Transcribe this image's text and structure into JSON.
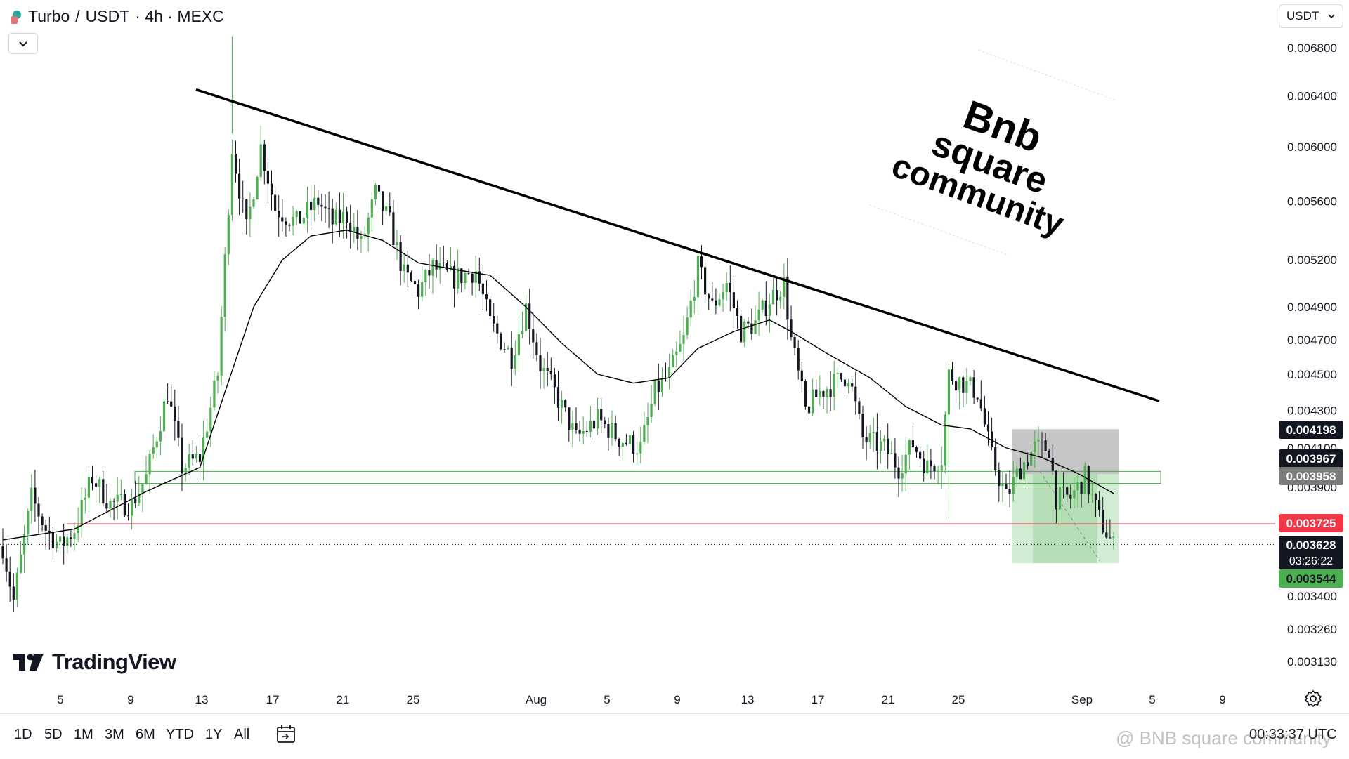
{
  "header": {
    "symbol": "Turbo",
    "separator1": "/",
    "quote": "USDT",
    "details": "· 4h · MEXC"
  },
  "currency_selector": {
    "label": "USDT"
  },
  "brand": {
    "name": "TradingView"
  },
  "watermark_text": "@ BNB square community",
  "overlay_text": [
    "Bnb",
    "square",
    "community"
  ],
  "time_ranges": [
    "1D",
    "5D",
    "1M",
    "3M",
    "6M",
    "YTD",
    "1Y",
    "All"
  ],
  "clock": "00:33:37 UTC",
  "colors": {
    "up": "#4caf50",
    "down": "#131722",
    "ma": "#000000",
    "support_zone": "#4caf50",
    "red_line": "#f23645",
    "stop_zone": "#9e9e9e",
    "target_zone": "#4caf50"
  },
  "chart_data": {
    "type": "candlestick",
    "x_ticks": [
      "5",
      "9",
      "13",
      "17",
      "21",
      "25",
      "Aug",
      "5",
      "9",
      "13",
      "17",
      "21",
      "25",
      "Sep",
      "5",
      "9"
    ],
    "y_ticks": [
      "0.006800",
      "0.006400",
      "0.006000",
      "0.005600",
      "0.005200",
      "0.004900",
      "0.004700",
      "0.004500",
      "0.004300",
      "0.004100",
      "0.003900",
      "0.003400",
      "0.003260",
      "0.003130"
    ],
    "y_scale": "log",
    "ylim": [
      0.00305,
      0.007
    ],
    "price_labels": [
      {
        "value": "0.004198",
        "style": "black"
      },
      {
        "value": "0.003967",
        "style": "black"
      },
      {
        "value": "0.003958",
        "style": "gray"
      },
      {
        "value": "0.003725",
        "style": "red"
      },
      {
        "value": "0.003628",
        "style": "black",
        "sub": "03:26:22"
      },
      {
        "value": "0.003544",
        "style": "green"
      }
    ],
    "candles": {
      "start": 0.00362,
      "waypoints": [
        [
          0,
          0.00362
        ],
        [
          3,
          0.00338
        ],
        [
          8,
          0.00385
        ],
        [
          12,
          0.0037
        ],
        [
          16,
          0.00362
        ],
        [
          20,
          0.0037
        ],
        [
          25,
          0.00395
        ],
        [
          30,
          0.00382
        ],
        [
          36,
          0.00382
        ],
        [
          40,
          0.00395
        ],
        [
          46,
          0.0044
        ],
        [
          50,
          0.004
        ],
        [
          55,
          0.00405
        ],
        [
          60,
          0.0045
        ],
        [
          64,
          0.006
        ],
        [
          68,
          0.0054
        ],
        [
          72,
          0.006
        ],
        [
          76,
          0.00555
        ],
        [
          82,
          0.00545
        ],
        [
          88,
          0.0056
        ],
        [
          92,
          0.00545
        ],
        [
          96,
          0.0055
        ],
        [
          100,
          0.0053
        ],
        [
          104,
          0.00565
        ],
        [
          108,
          0.00545
        ],
        [
          112,
          0.0051
        ],
        [
          116,
          0.005
        ],
        [
          120,
          0.00515
        ],
        [
          126,
          0.00508
        ],
        [
          132,
          0.00513
        ],
        [
          136,
          0.0048
        ],
        [
          142,
          0.0046
        ],
        [
          146,
          0.0049
        ],
        [
          150,
          0.00455
        ],
        [
          154,
          0.0044
        ],
        [
          160,
          0.00415
        ],
        [
          166,
          0.00425
        ],
        [
          172,
          0.00415
        ],
        [
          178,
          0.0041
        ],
        [
          182,
          0.0044
        ],
        [
          186,
          0.0045
        ],
        [
          190,
          0.0047
        ],
        [
          194,
          0.00515
        ],
        [
          198,
          0.0049
        ],
        [
          202,
          0.00505
        ],
        [
          206,
          0.00475
        ],
        [
          210,
          0.0048
        ],
        [
          214,
          0.00495
        ],
        [
          218,
          0.00505
        ],
        [
          220,
          0.0047
        ],
        [
          224,
          0.0043
        ],
        [
          228,
          0.0044
        ],
        [
          232,
          0.00445
        ],
        [
          236,
          0.0045
        ],
        [
          240,
          0.00415
        ],
        [
          246,
          0.0041
        ],
        [
          250,
          0.004
        ],
        [
          254,
          0.00412
        ],
        [
          258,
          0.004
        ],
        [
          262,
          0.00405
        ],
        [
          264,
          0.0045
        ],
        [
          268,
          0.00445
        ],
        [
          272,
          0.0044
        ],
        [
          276,
          0.00405
        ],
        [
          280,
          0.00385
        ],
        [
          284,
          0.004
        ],
        [
          288,
          0.0041
        ],
        [
          292,
          0.0041
        ],
        [
          294,
          0.00385
        ],
        [
          298,
          0.00385
        ],
        [
          302,
          0.00395
        ],
        [
          306,
          0.00375
        ],
        [
          310,
          0.00362
        ]
      ]
    },
    "moving_average": [
      [
        0,
        0.00365
      ],
      [
        20,
        0.0037
      ],
      [
        40,
        0.00388
      ],
      [
        55,
        0.004
      ],
      [
        62,
        0.0044
      ],
      [
        70,
        0.0049
      ],
      [
        78,
        0.0052
      ],
      [
        86,
        0.00536
      ],
      [
        96,
        0.0054
      ],
      [
        106,
        0.00533
      ],
      [
        116,
        0.00518
      ],
      [
        128,
        0.00513
      ],
      [
        136,
        0.0051
      ],
      [
        146,
        0.0049
      ],
      [
        156,
        0.00468
      ],
      [
        166,
        0.0045
      ],
      [
        176,
        0.00445
      ],
      [
        186,
        0.00448
      ],
      [
        194,
        0.00465
      ],
      [
        204,
        0.00475
      ],
      [
        214,
        0.00482
      ],
      [
        220,
        0.00475
      ],
      [
        230,
        0.00462
      ],
      [
        242,
        0.00448
      ],
      [
        252,
        0.00432
      ],
      [
        262,
        0.00422
      ],
      [
        270,
        0.0042
      ],
      [
        280,
        0.0041
      ],
      [
        290,
        0.00405
      ],
      [
        300,
        0.00397
      ],
      [
        310,
        0.00387
      ]
    ],
    "trendline": [
      [
        55,
        0.00645
      ],
      [
        330,
        0.00435
      ]
    ],
    "support_zone": [
      0.00392,
      0.00398
    ],
    "red_line": 0.003725,
    "current_price": 0.003628,
    "stop_zone": [
      0.003967,
      0.004198
    ],
    "target_zone": [
      0.003544,
      0.003967
    ]
  }
}
